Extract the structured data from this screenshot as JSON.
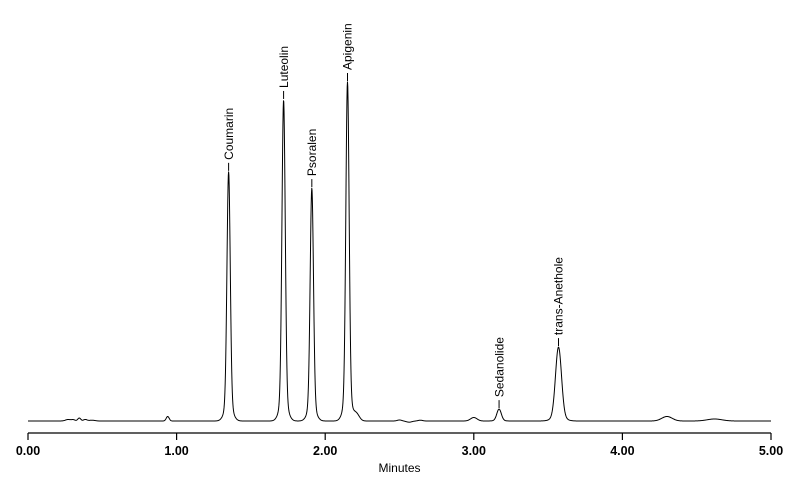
{
  "figure": {
    "background_color": "#ffffff",
    "line_color": "#000000"
  },
  "chart_data": {
    "type": "line",
    "title": "",
    "subtitle": "",
    "xlabel": "Minutes",
    "ylabel": "",
    "y_axis_shown": false,
    "x_range": [
      0.0,
      5.0
    ],
    "x_tick_labels": [
      "0.00",
      "1.00",
      "2.00",
      "3.00",
      "4.00",
      "5.00"
    ],
    "x_tick_values": [
      0,
      1,
      2,
      3,
      4,
      5
    ],
    "grid": "off",
    "legend": "none",
    "trace_color": "#000000",
    "background": "#ffffff",
    "peaks": [
      {
        "name": "Coumarin",
        "rt_min": 1.35,
        "amplitude": 0.735,
        "sigma_min": 0.011,
        "flare_sigma_min": 0.026,
        "flare_frac": 0.07
      },
      {
        "name": "Luteolin",
        "rt_min": 1.72,
        "amplitude": 0.947,
        "sigma_min": 0.011,
        "flare_sigma_min": 0.026,
        "flare_frac": 0.07
      },
      {
        "name": "Psoralen",
        "rt_min": 1.91,
        "amplitude": 0.687,
        "sigma_min": 0.011,
        "flare_sigma_min": 0.026,
        "flare_frac": 0.07
      },
      {
        "name": "Apigenin",
        "rt_min": 2.15,
        "amplitude": 1.0,
        "sigma_min": 0.011,
        "flare_sigma_min": 0.026,
        "flare_frac": 0.07
      },
      {
        "name": "Sedanolide",
        "rt_min": 3.17,
        "amplitude": 0.035,
        "sigma_min": 0.015,
        "flare_sigma_min": 0.03,
        "flare_frac": 0.05
      },
      {
        "name": "trans-Anethole",
        "rt_min": 3.57,
        "amplitude": 0.218,
        "sigma_min": 0.02,
        "flare_sigma_min": 0.04,
        "flare_frac": 0.06
      }
    ],
    "baseline_noise": [
      {
        "t": 0.27,
        "amp": 0.0044,
        "sigma": 0.018
      },
      {
        "t": 0.305,
        "amp": 0.0035,
        "sigma": 0.012
      },
      {
        "t": 0.345,
        "amp": 0.0088,
        "sigma": 0.01
      },
      {
        "t": 0.385,
        "amp": 0.0044,
        "sigma": 0.012
      },
      {
        "t": 0.43,
        "amp": 0.0024,
        "sigma": 0.02
      },
      {
        "t": 0.94,
        "amp": 0.0133,
        "sigma": 0.01
      },
      {
        "t": 2.21,
        "amp": 0.0207,
        "sigma": 0.02
      },
      {
        "t": 2.5,
        "amp": 0.003,
        "sigma": 0.015
      },
      {
        "t": 2.565,
        "amp": -0.0035,
        "sigma": 0.018
      },
      {
        "t": 2.64,
        "amp": 0.0024,
        "sigma": 0.015
      },
      {
        "t": 3.0,
        "amp": 0.0103,
        "sigma": 0.022
      },
      {
        "t": 4.3,
        "amp": 0.0133,
        "sigma": 0.035
      },
      {
        "t": 4.62,
        "amp": 0.0059,
        "sigma": 0.05
      }
    ]
  }
}
